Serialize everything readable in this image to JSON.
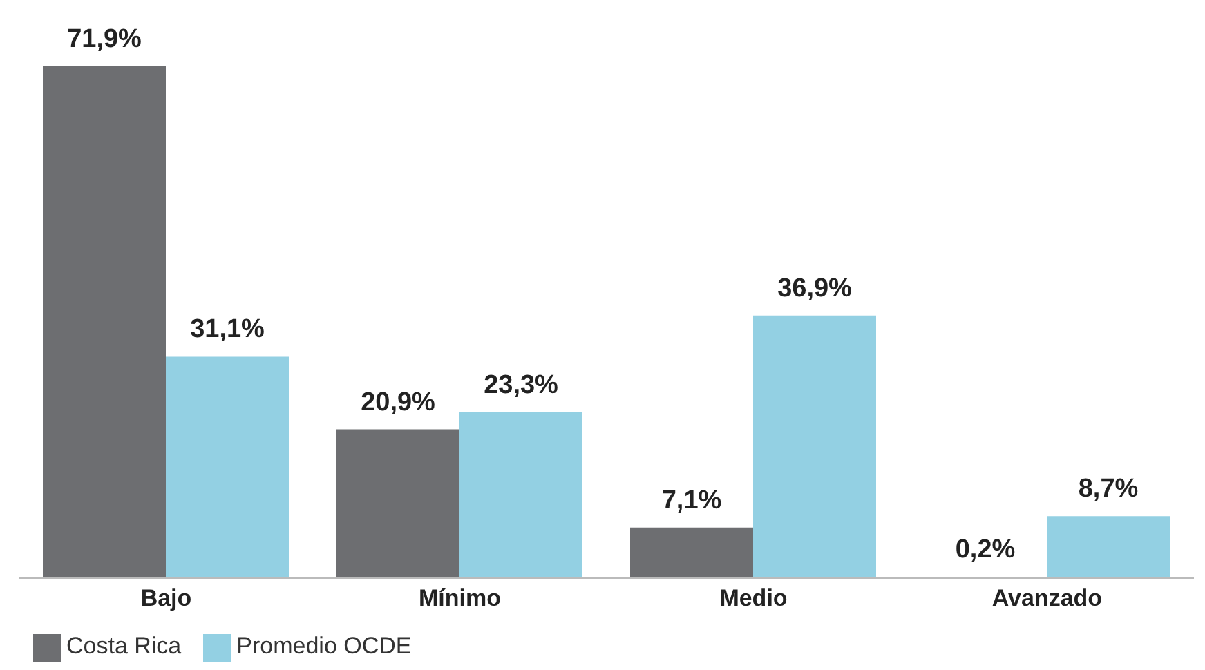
{
  "chart_data": {
    "type": "bar",
    "categories": [
      "Bajo",
      "Mínimo",
      "Medio",
      "Avanzado"
    ],
    "series": [
      {
        "name": "Costa Rica",
        "color": "#6d6e71",
        "values": [
          71.9,
          20.9,
          7.1,
          0.2
        ],
        "value_labels": [
          "71,9%",
          "20,9%",
          "7,1%",
          "0,2%"
        ]
      },
      {
        "name": "Promedio OCDE",
        "color": "#93d0e3",
        "values": [
          31.1,
          23.3,
          36.9,
          8.7
        ],
        "value_labels": [
          "31,1%",
          "23,3%",
          "36,9%",
          "8,7%"
        ]
      }
    ],
    "legend": "bottom left",
    "grid": false
  }
}
